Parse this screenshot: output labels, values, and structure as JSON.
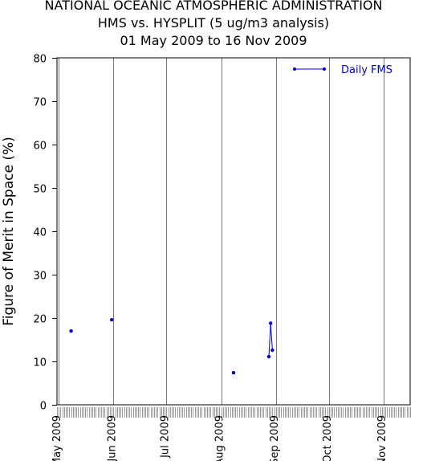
{
  "chart_data": {
    "type": "line",
    "title": "NATIONAL OCEANIC ATMOSPHERIC ADMINISTRATION",
    "subtitle": "HMS vs. HYSPLIT (5 ug/m3 analysis)",
    "date_range": "01 May 2009 to 16 Nov 2009",
    "xlabel": "",
    "ylabel": "Figure of Merit in Space (%)",
    "ylim": [
      0,
      80
    ],
    "yticks": [
      0,
      10,
      20,
      30,
      40,
      50,
      60,
      70,
      80
    ],
    "xlim": [
      "2009-04-30",
      "2009-11-16"
    ],
    "xticks": [
      {
        "label": "May 2009",
        "date": "2009-05-01"
      },
      {
        "label": "Jun 2009",
        "date": "2009-06-01"
      },
      {
        "label": "Jul 2009",
        "date": "2009-07-01"
      },
      {
        "label": "Aug 2009",
        "date": "2009-08-01"
      },
      {
        "label": "Sep 2009",
        "date": "2009-09-01"
      },
      {
        "label": "Oct 2009",
        "date": "2009-10-01"
      },
      {
        "label": "Nov 2009",
        "date": "2009-11-01"
      }
    ],
    "grid": "vertical month lines",
    "legend_position": "top-right",
    "series": [
      {
        "name": "Daily FMS",
        "color": "#0000cc",
        "points": [
          {
            "date": "2009-05-08",
            "y": 17
          },
          {
            "date": "2009-05-31",
            "y": 19.6
          },
          {
            "date": "2009-08-08",
            "y": 7.4
          },
          {
            "date": "2009-08-28",
            "y": 11.1
          },
          {
            "date": "2009-08-29",
            "y": 18.8
          },
          {
            "date": "2009-08-30",
            "y": 12.6
          }
        ]
      }
    ]
  }
}
